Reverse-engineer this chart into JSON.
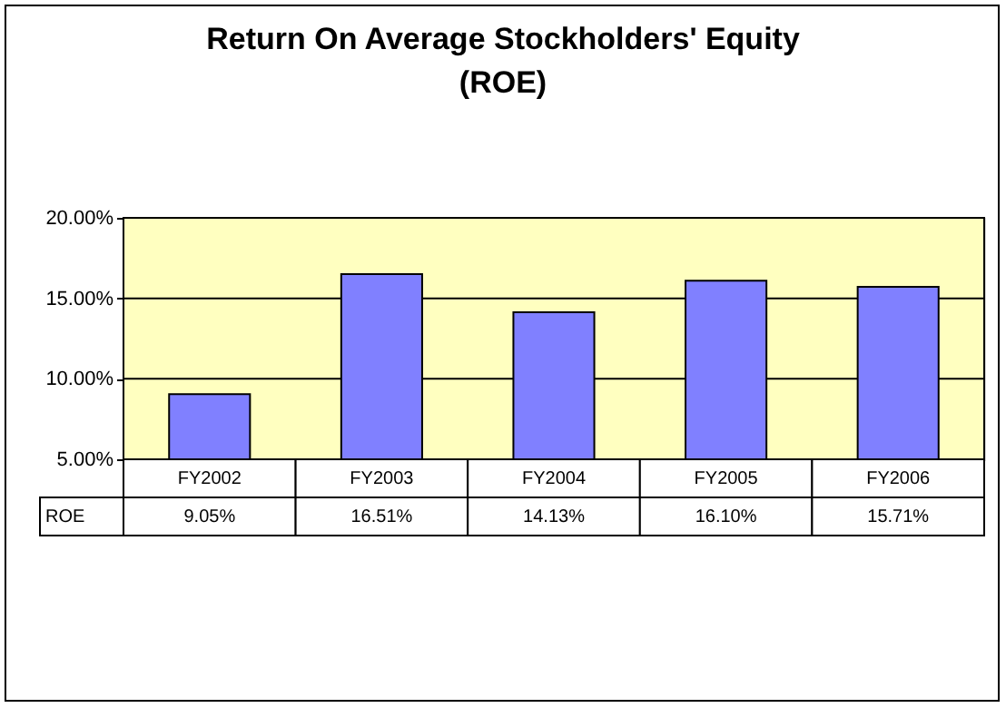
{
  "chart_data": {
    "type": "bar",
    "title": "Return On Average Stockholders' Equity\n(ROE)",
    "categories": [
      "FY2002",
      "FY2003",
      "FY2004",
      "FY2005",
      "FY2006"
    ],
    "series": [
      {
        "name": "ROE",
        "color": "#8080ff",
        "values": [
          9.05,
          16.51,
          14.13,
          16.1,
          15.71
        ],
        "value_labels": [
          "9.05%",
          "16.51%",
          "14.13%",
          "16.10%",
          "15.71%"
        ]
      }
    ],
    "ylim": [
      5,
      20
    ],
    "yticks": [
      {
        "value": 5,
        "label": "5.00%"
      },
      {
        "value": 10,
        "label": "10.00%"
      },
      {
        "value": 15,
        "label": "15.00%"
      },
      {
        "value": 20,
        "label": "20.00%"
      }
    ],
    "grid": "y"
  }
}
